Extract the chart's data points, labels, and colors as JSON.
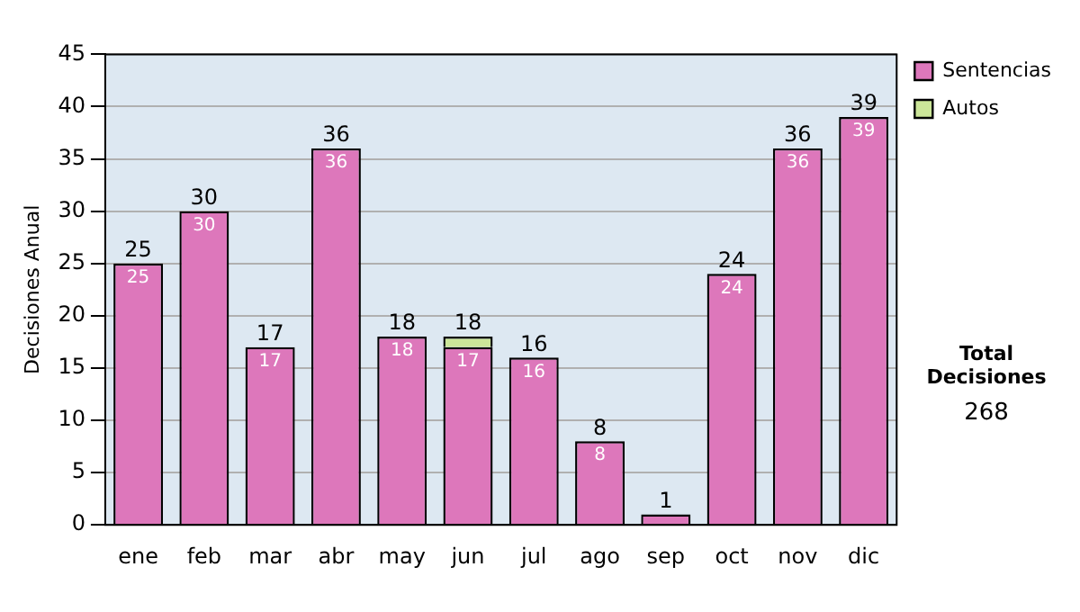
{
  "chart_data": {
    "type": "bar",
    "stacked": true,
    "ylabel": "Decisiones Anual",
    "categories": [
      "ene",
      "feb",
      "mar",
      "abr",
      "may",
      "jun",
      "jul",
      "ago",
      "sep",
      "oct",
      "nov",
      "dic"
    ],
    "series": [
      {
        "name": "Sentencias",
        "color": "#dd77bb",
        "values": [
          25,
          30,
          17,
          36,
          18,
          17,
          16,
          8,
          1,
          24,
          36,
          39
        ],
        "value_labels": [
          "25",
          "30",
          "17",
          "36",
          "18",
          "17",
          "16",
          "8",
          null,
          "24",
          "36",
          "39"
        ]
      },
      {
        "name": "Autos",
        "color": "#cce699",
        "values": [
          0,
          0,
          0,
          0,
          0,
          1,
          0,
          0,
          0,
          0,
          0,
          0
        ]
      }
    ],
    "totals": [
      "25",
      "30",
      "17",
      "36",
      "18",
      "18",
      "16",
      "8",
      "1",
      "24",
      "36",
      "39"
    ],
    "ylim": [
      0,
      45
    ],
    "yticks": [
      0,
      5,
      10,
      15,
      20,
      25,
      30,
      35,
      40,
      45
    ],
    "grid": "y",
    "legend": "right",
    "annotations": [
      "Total Decisiones",
      "268"
    ]
  }
}
